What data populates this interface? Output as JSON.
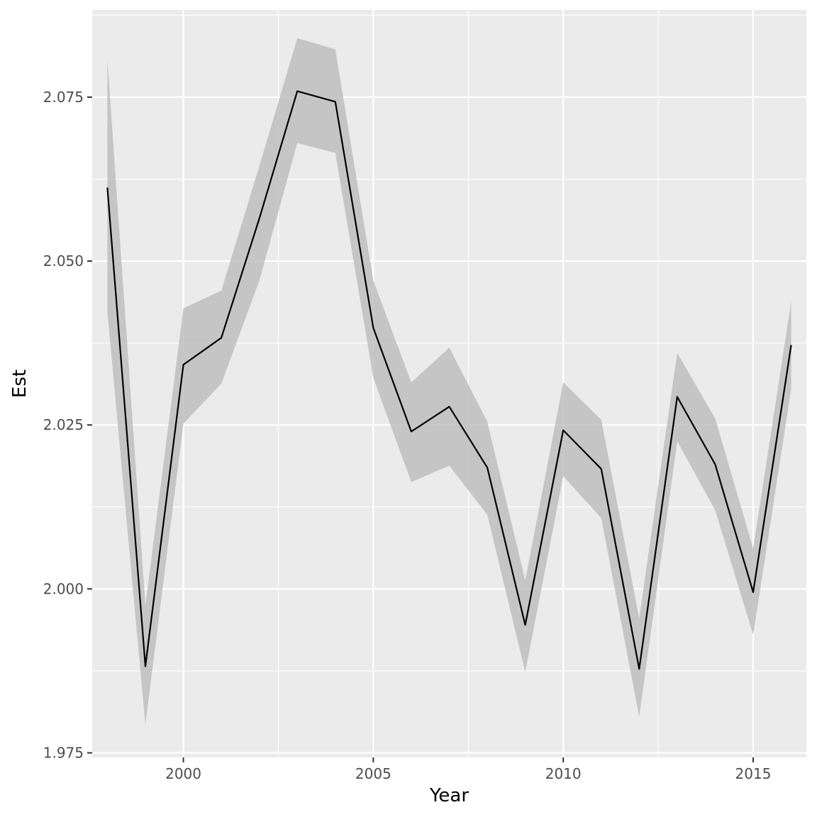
{
  "chart_data": {
    "type": "line",
    "xlabel": "Year",
    "ylabel": "Est",
    "xlim": [
      1997.6,
      2016.4
    ],
    "ylim": [
      1.9743,
      2.0883
    ],
    "x_ticks": [
      2000,
      2005,
      2010,
      2015
    ],
    "y_ticks": [
      1.975,
      2.0,
      2.025,
      2.05,
      2.075
    ],
    "y_tick_labels": [
      "1.975",
      "2.000",
      "2.025",
      "2.050",
      "2.075"
    ],
    "grid": true,
    "legend": "none",
    "series": [
      {
        "x": [
          1998,
          1999,
          2000,
          2001,
          2002,
          2003,
          2004,
          2005,
          2006,
          2007,
          2008,
          2009,
          2010,
          2011,
          2012,
          2013,
          2014,
          2015,
          2016
        ],
        "y": [
          2.0612,
          1.9882,
          2.0342,
          2.0383,
          2.0565,
          2.0759,
          2.0743,
          2.0398,
          2.024,
          2.0278,
          2.0185,
          1.9945,
          2.0242,
          2.0183,
          1.9878,
          2.0293,
          2.019,
          1.9995,
          2.0372
        ],
        "lower": [
          2.0423,
          1.9793,
          2.0252,
          2.0313,
          2.047,
          2.068,
          2.0665,
          2.0322,
          2.0163,
          2.0188,
          2.0113,
          1.9873,
          2.0172,
          2.0108,
          1.9805,
          2.0225,
          2.012,
          1.993,
          2.0305
        ],
        "upper": [
          2.0808,
          1.9975,
          2.0428,
          2.0455,
          2.0645,
          2.084,
          2.0823,
          2.047,
          2.0315,
          2.0368,
          2.0255,
          2.0013,
          2.0315,
          2.0258,
          1.9955,
          2.036,
          2.026,
          2.0062,
          2.0438
        ]
      }
    ],
    "colors": {
      "panel": "#ebebeb",
      "grid": "#ffffff",
      "ribbon": "#bebebe",
      "line": "#000000",
      "tick_mark": "#333333"
    }
  }
}
